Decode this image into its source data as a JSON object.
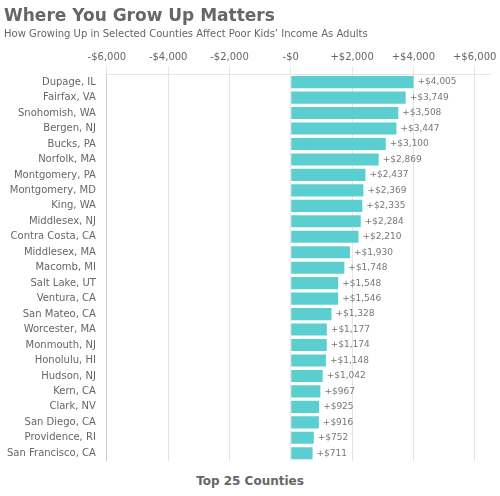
{
  "chart_data": {
    "type": "bar",
    "orientation": "horizontal",
    "title": "Where You Grow Up Matters",
    "subtitle": "How Growing Up in Selected Counties Affect Poor Kids’ Income As Adults",
    "xlabel": "Top 25 Counties",
    "categories": [
      "Dupage, IL",
      "Fairfax, VA",
      "Snohomish, WA",
      "Bergen, NJ",
      "Bucks, PA",
      "Norfolk, MA",
      "Montgomery, PA",
      "Montgomery, MD",
      "King, WA",
      "Middlesex, NJ",
      "Contra Costa, CA",
      "Middlesex, MA",
      "Macomb, MI",
      "Salt Lake, UT",
      "Ventura, CA",
      "San Mateo, CA",
      "Worcester, MA",
      "Monmouth, NJ",
      "Honolulu, HI",
      "Hudson, NJ",
      "Kern, CA",
      "Clark, NV",
      "San Diego, CA",
      "Providence, RI",
      "San Francisco, CA"
    ],
    "values": [
      4005,
      3749,
      3508,
      3447,
      3100,
      2869,
      2437,
      2369,
      2335,
      2284,
      2210,
      1930,
      1748,
      1548,
      1546,
      1328,
      1177,
      1174,
      1148,
      1042,
      967,
      925,
      916,
      752,
      711
    ],
    "value_labels": [
      "+$4,005",
      "+$3,749",
      "+$3,508",
      "+$3,447",
      "+$3,100",
      "+$2,869",
      "+$2,437",
      "+$2,369",
      "+$2,335",
      "+$2,284",
      "+$2,210",
      "+$1,930",
      "+$1,748",
      "+$1,548",
      "+$1,546",
      "+$1,328",
      "+$1,177",
      "+$1,174",
      "+$1,148",
      "+$1,042",
      "+$967",
      "+$925",
      "+$916",
      "+$752",
      "+$711"
    ],
    "data_labels": true,
    "color": "#5bcfcf",
    "xlim": [
      -6000,
      6500
    ],
    "xticks": [
      {
        "value": -6000,
        "label": "-$6,000"
      },
      {
        "value": -4000,
        "label": "-$4,000"
      },
      {
        "value": -2000,
        "label": "-$2,000"
      },
      {
        "value": 0,
        "label": "-$0"
      },
      {
        "value": 2000,
        "label": "+$2,000"
      },
      {
        "value": 4000,
        "label": "+$4,000"
      },
      {
        "value": 6000,
        "label": "+$6,000"
      }
    ],
    "grid": true
  }
}
